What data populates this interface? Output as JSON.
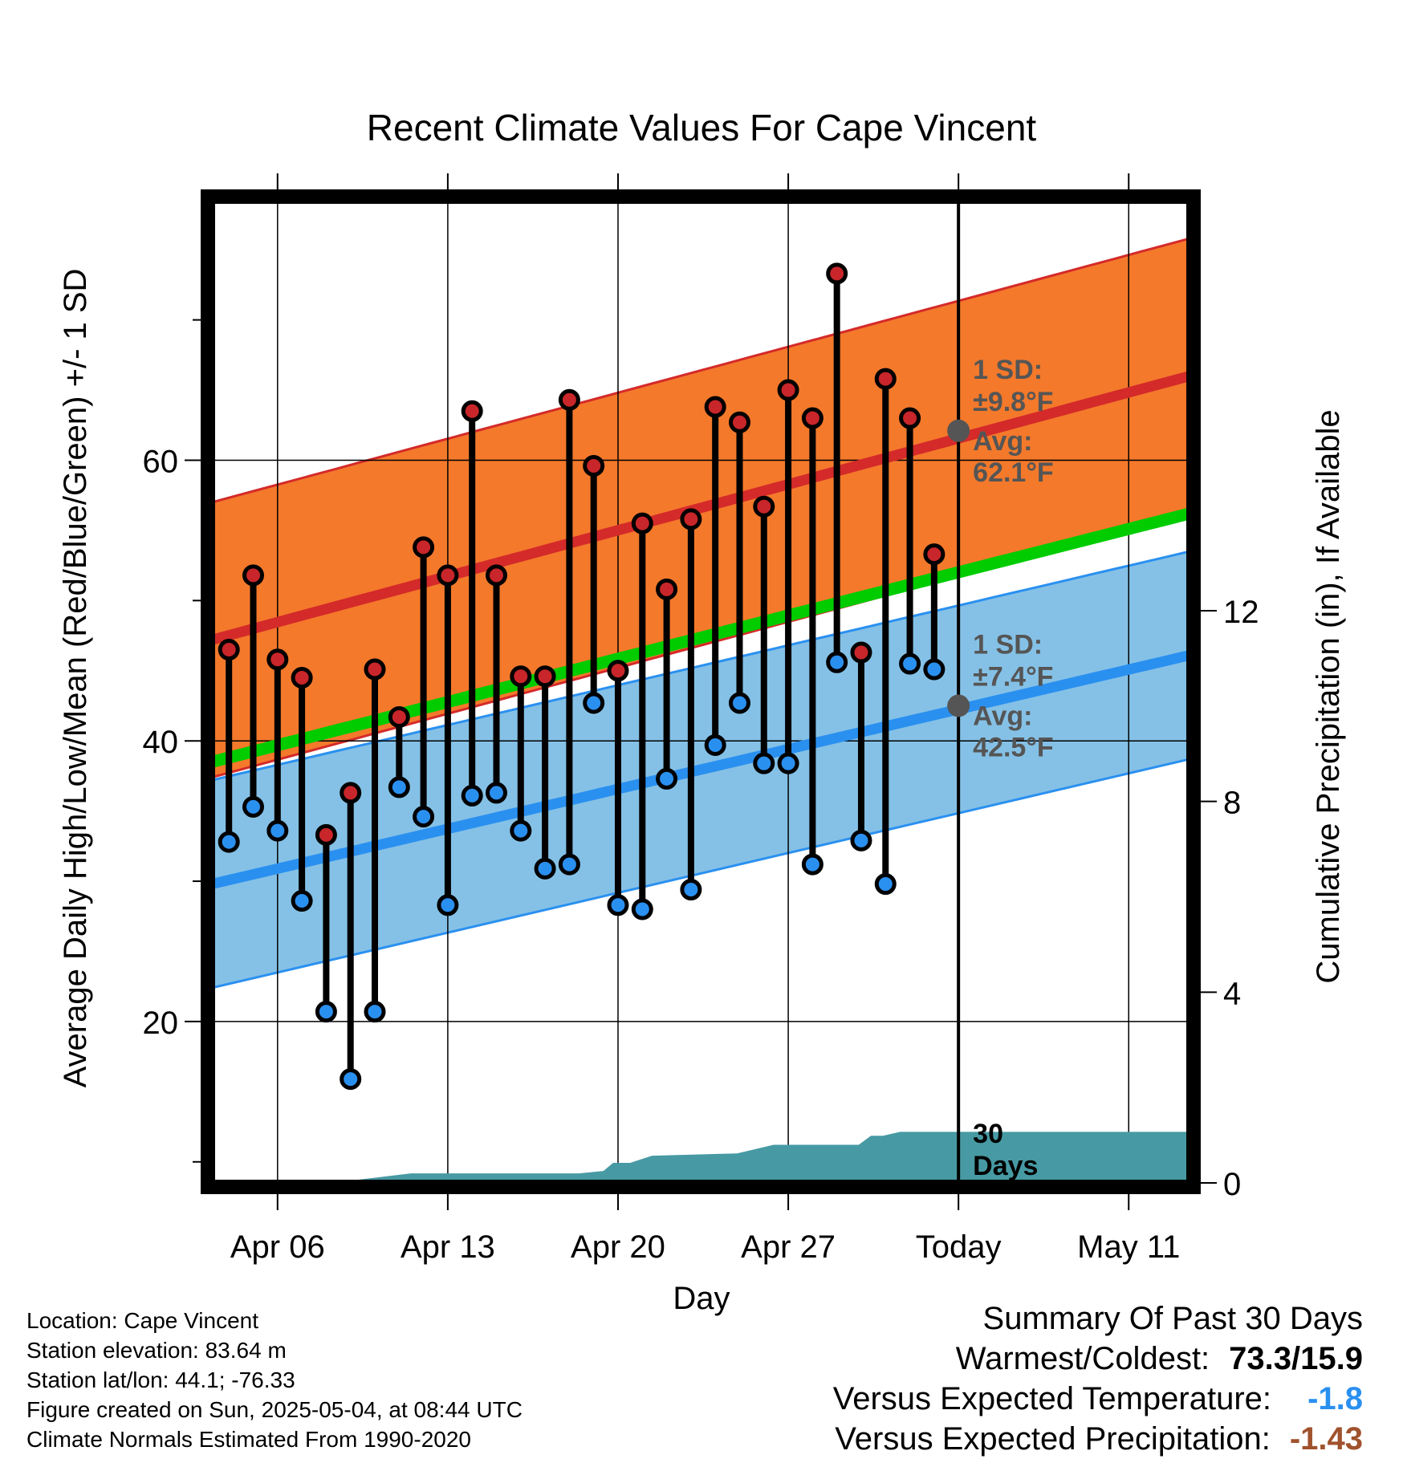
{
  "chart_data": {
    "type": "line",
    "title": "Recent Climate Values For Cape Vincent",
    "xlabel": "Day",
    "ylabel": "Average Daily High/Low/Mean (Red/Blue/Green) +/- 1 SD",
    "y2label": "Cumulative Precipitation (in), If Available",
    "x_tick_labels": [
      "Apr 06",
      "Apr 13",
      "Apr 20",
      "Apr 27",
      "Today",
      "May 11"
    ],
    "x_tick_days": [
      0,
      7,
      14,
      21,
      28,
      35
    ],
    "x_range_days": [
      -2.7,
      37.5
    ],
    "y_ticks": [
      20,
      40,
      60
    ],
    "ylim": [
      8.5,
      78.5
    ],
    "y2_ticks": [
      0,
      4,
      8,
      12
    ],
    "y2lim": [
      0,
      20.6
    ],
    "grid": true,
    "days": [
      -2,
      -1,
      0,
      1,
      2,
      3,
      4,
      5,
      6,
      7,
      8,
      9,
      10,
      11,
      12,
      13,
      14,
      15,
      16,
      17,
      18,
      19,
      20,
      21,
      22,
      23,
      24,
      25,
      26,
      27
    ],
    "daily_high": [
      46.5,
      51.8,
      45.8,
      44.5,
      33.3,
      36.3,
      45.1,
      41.7,
      53.8,
      51.8,
      63.5,
      51.8,
      44.6,
      44.6,
      64.3,
      59.6,
      45.0,
      55.5,
      50.8,
      55.8,
      63.8,
      62.7,
      56.7,
      65.0,
      63.0,
      73.3,
      46.3,
      65.8,
      63.0,
      53.3
    ],
    "daily_low": [
      32.8,
      35.3,
      33.6,
      28.6,
      20.7,
      15.9,
      20.7,
      36.7,
      34.6,
      28.3,
      36.1,
      36.3,
      33.6,
      30.9,
      31.2,
      42.7,
      28.3,
      28.0,
      37.3,
      29.4,
      39.7,
      42.7,
      38.4,
      38.4,
      31.2,
      45.6,
      32.9,
      29.8,
      45.5,
      45.1
    ],
    "normal_high": {
      "start": 47.2,
      "end": 66.0
    },
    "normal_low": {
      "start": 29.8,
      "end": 46.1
    },
    "normal_mean": {
      "start": 38.5,
      "end": 56.2
    },
    "high_sd": 9.8,
    "low_sd": 7.4,
    "precip_days": [
      -2.7,
      0.6,
      1.7,
      2.2,
      2.7,
      5.5,
      12.4,
      13.4,
      13.8,
      14.5,
      15.4,
      18.9,
      20.4,
      21.4,
      23.9,
      24.4,
      24.9,
      25.6,
      37.5
    ],
    "precip_cum": [
      0.0,
      0.0,
      0.03,
      0.03,
      0.03,
      0.2,
      0.2,
      0.25,
      0.42,
      0.42,
      0.57,
      0.62,
      0.8,
      0.8,
      0.8,
      0.99,
      0.99,
      1.07,
      1.07
    ],
    "annotations": {
      "high_sd_label": "1 SD:",
      "high_sd_value": "±9.8°F",
      "high_avg_label": "Avg:",
      "high_avg_value": "62.1°F",
      "low_sd_label": "1 SD:",
      "low_sd_value": "±7.4°F",
      "low_avg_label": "Avg:",
      "low_avg_value": "42.5°F",
      "today_high_avg": 62.1,
      "today_low_avg": 42.5,
      "days_label_1": "30",
      "days_label_2": "Days"
    },
    "colors": {
      "high_band": "#f4792b",
      "high_line": "#d42a2a",
      "low_band": "#85c1e6",
      "low_line": "#2a90f0",
      "mean_line": "#00cc00",
      "precip_fill": "#479aa3",
      "high_dot": "#c8262a",
      "low_dot": "#2a90f0",
      "annotation_text": "#555555",
      "today_dot": "#555555"
    }
  },
  "info": {
    "location": "Location: Cape Vincent",
    "elevation": "Station elevation: 83.64 m",
    "latlon": "Station lat/lon: 44.1; -76.33",
    "created": "Figure created on Sun, 2025-05-04, at 08:44 UTC",
    "normals": "Climate Normals Estimated From 1990-2020"
  },
  "summary": {
    "title": "Summary Of Past 30 Days",
    "warmest_label": "Warmest/Coldest:",
    "warmest_value": "73.3/15.9",
    "temp_label": "Versus Expected Temperature:",
    "temp_value": "-1.8",
    "temp_color": "#2a90f0",
    "precip_label": "Versus Expected Precipitation:",
    "precip_value": "-1.43",
    "precip_color": "#a0522d"
  }
}
